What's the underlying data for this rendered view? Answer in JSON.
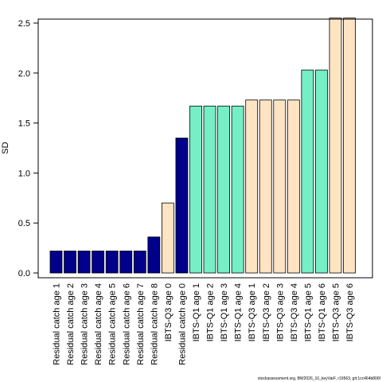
{
  "chart_data": {
    "type": "bar",
    "ylabel": "SD",
    "ylim": [
      0,
      2.55
    ],
    "y_ticks": [
      "0.0",
      "0.5",
      "1.0",
      "1.5",
      "2.0",
      "2.5"
    ],
    "grid": false,
    "categories": [
      "Residual catch age 1",
      "Residual catch age 2",
      "Residual catch age 3",
      "Residual catch age 4",
      "Residual catch age 5",
      "Residual catch age 6",
      "Residual catch age 7",
      "Residual catch age 8",
      "IBTS-Q3 age 0",
      "Residual catch age 0",
      "IBTS-Q1 age 1",
      "IBTS-Q1 age 2",
      "IBTS-Q1 age 3",
      "IBTS-Q1 age 4",
      "IBTS-Q3 age 1",
      "IBTS-Q3 age 2",
      "IBTS-Q3 age 3",
      "IBTS-Q3 age 4",
      "IBTS-Q1 age 5",
      "IBTS-Q1 age 6",
      "IBTS-Q3 age 5",
      "IBTS-Q3 age 6"
    ],
    "values": [
      0.22,
      0.22,
      0.22,
      0.22,
      0.22,
      0.22,
      0.22,
      0.36,
      0.7,
      1.35,
      1.67,
      1.67,
      1.67,
      1.67,
      1.73,
      1.73,
      1.73,
      1.73,
      2.03,
      2.03,
      2.55,
      2.55
    ],
    "bar_colors": [
      "#00008B",
      "#00008B",
      "#00008B",
      "#00008B",
      "#00008B",
      "#00008B",
      "#00008B",
      "#00008B",
      "#FFE4C4",
      "#00008B",
      "#76EEC6",
      "#76EEC6",
      "#76EEC6",
      "#76EEC6",
      "#FFE4C4",
      "#FFE4C4",
      "#FFE4C4",
      "#FFE4C4",
      "#76EEC6",
      "#76EEC6",
      "#FFE4C4",
      "#FFE4C4"
    ]
  },
  "footer_text": "stockassessment.org, BW2026_10_keyVarF, r19563, git:1cc464b806f"
}
